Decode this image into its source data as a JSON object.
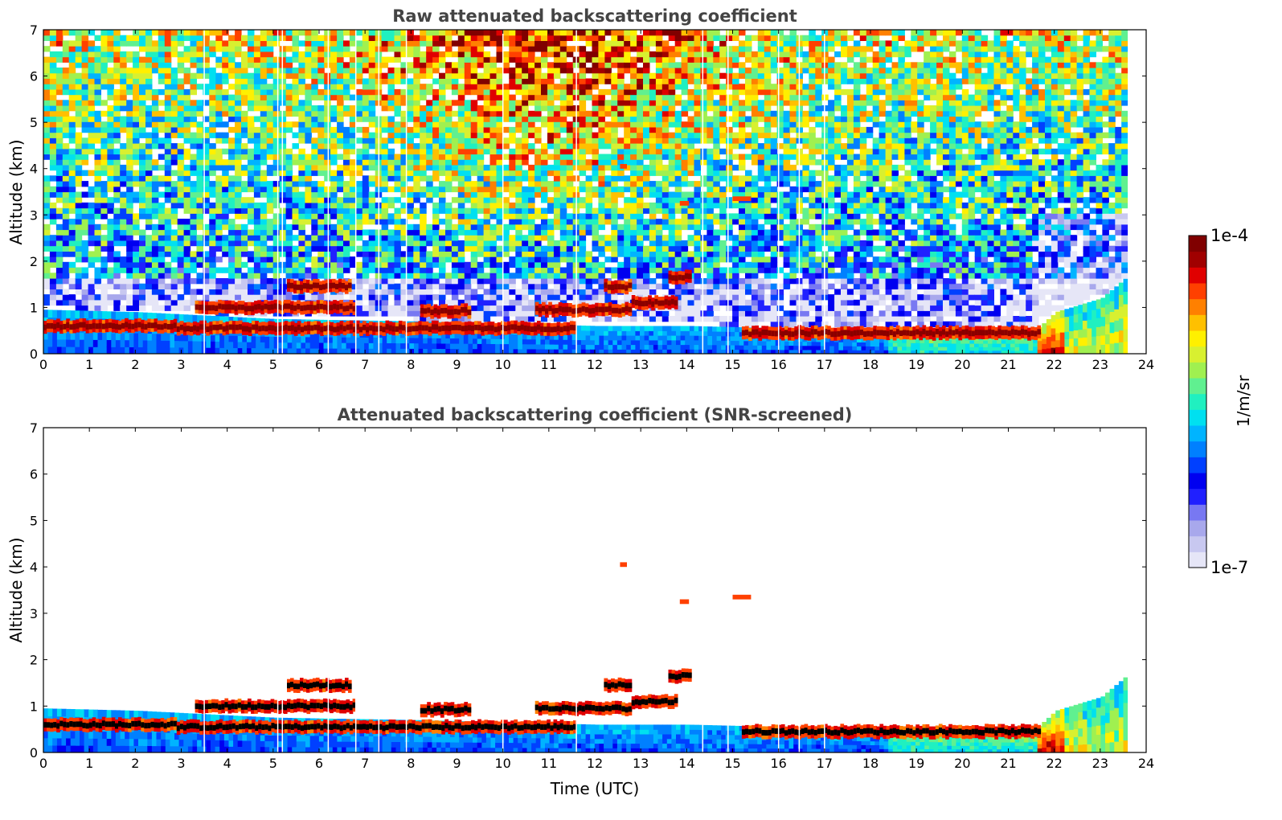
{
  "chart_data": [
    {
      "type": "heatmap",
      "title": "Raw attenuated backscattering coefficient",
      "xlabel": "",
      "ylabel": "Altitude (km)",
      "xlim": [
        0,
        24
      ],
      "ylim": [
        0,
        7
      ],
      "xticks": [
        "0",
        "1",
        "2",
        "3",
        "4",
        "5",
        "6",
        "7",
        "8",
        "9",
        "10",
        "11",
        "12",
        "13",
        "14",
        "15",
        "16",
        "17",
        "18",
        "19",
        "20",
        "21",
        "22",
        "23",
        "24"
      ],
      "yticks": [
        "0",
        "1",
        "2",
        "3",
        "4",
        "5",
        "6",
        "7"
      ],
      "data_end_time": 23.6,
      "gap_times": [
        3.5,
        5.1,
        5.2,
        6.2,
        6.8,
        7.3,
        7.9,
        10.0,
        11.6,
        14.35,
        14.9,
        16.0,
        16.45,
        17.0
      ],
      "boundary_layer_top_km": [
        [
          0,
          0.95
        ],
        [
          2,
          0.9
        ],
        [
          3,
          0.85
        ],
        [
          5,
          0.75
        ],
        [
          8,
          0.7
        ],
        [
          10,
          0.65
        ],
        [
          12,
          0.6
        ],
        [
          14,
          0.6
        ],
        [
          16,
          0.55
        ],
        [
          18,
          0.5
        ],
        [
          20,
          0.45
        ],
        [
          21.5,
          0.45
        ],
        [
          22,
          0.9
        ],
        [
          23,
          1.2
        ],
        [
          23.6,
          1.7
        ]
      ],
      "dense_cloud_layers": [
        {
          "t0": 0.0,
          "t1": 2.9,
          "z": 0.6
        },
        {
          "t0": 2.9,
          "t1": 7.3,
          "z": 0.55
        },
        {
          "t0": 7.3,
          "t1": 11.6,
          "z": 0.55
        },
        {
          "t0": 15.2,
          "t1": 21.7,
          "z": 0.45
        },
        {
          "t0": 3.3,
          "t1": 6.8,
          "z": 1.0
        },
        {
          "t0": 10.7,
          "t1": 12.8,
          "z": 0.95
        },
        {
          "t0": 12.2,
          "t1": 12.8,
          "z": 1.45
        },
        {
          "t0": 12.8,
          "t1": 13.8,
          "z": 1.1
        },
        {
          "t0": 13.6,
          "t1": 14.1,
          "z": 1.65
        },
        {
          "t0": 5.3,
          "t1": 6.7,
          "z": 1.45
        },
        {
          "t0": 8.2,
          "t1": 9.3,
          "z": 0.92
        }
      ],
      "elevated_layers": [
        {
          "t0": 15.0,
          "t1": 15.4,
          "z": 3.35
        },
        {
          "t0": 13.85,
          "t1": 14.05,
          "z": 3.25
        },
        {
          "t0": 12.55,
          "t1": 12.7,
          "z": 4.05
        }
      ]
    },
    {
      "type": "heatmap",
      "title": "Attenuated backscattering coefficient (SNR-screened)",
      "xlabel": "Time (UTC)",
      "ylabel": "Altitude (km)",
      "xlim": [
        0,
        24
      ],
      "ylim": [
        0,
        7
      ],
      "xticks": [
        "0",
        "1",
        "2",
        "3",
        "4",
        "5",
        "6",
        "7",
        "8",
        "9",
        "10",
        "11",
        "12",
        "13",
        "14",
        "15",
        "16",
        "17",
        "18",
        "19",
        "20",
        "21",
        "22",
        "23",
        "24"
      ],
      "yticks": [
        "0",
        "1",
        "2",
        "3",
        "4",
        "5",
        "6",
        "7"
      ],
      "screened": true
    }
  ],
  "colorbar": {
    "max_label": "1e-4",
    "min_label": "1e-7",
    "unit_label": "1/m/sr",
    "colors": [
      "#e6e6f7",
      "#c8c8f0",
      "#a8a8ec",
      "#7878f2",
      "#2020ff",
      "#0000f0",
      "#0040ff",
      "#0080ff",
      "#00b4ff",
      "#00e0f0",
      "#20f0c0",
      "#60f090",
      "#a0f050",
      "#d8f030",
      "#fff000",
      "#ffc000",
      "#ff8000",
      "#ff4000",
      "#e00000",
      "#a00000",
      "#800000"
    ]
  }
}
